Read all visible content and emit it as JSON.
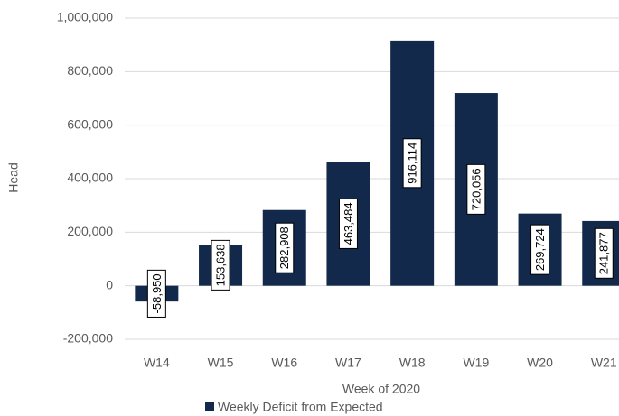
{
  "chart_data": {
    "type": "bar",
    "categories": [
      "W14",
      "W15",
      "W16",
      "W17",
      "W18",
      "W19",
      "W20",
      "W21"
    ],
    "series": [
      {
        "name": "Weekly Deficit from Expected",
        "color": "#13294b",
        "values": [
          -58950,
          153638,
          282908,
          463484,
          916114,
          720056,
          269724,
          241877
        ],
        "value_labels": [
          "-58,950",
          "153,638",
          "282,908",
          "463,484",
          "916,114",
          "720,056",
          "269,724",
          "241,877"
        ]
      }
    ],
    "x_label": "Week of 2020",
    "y_label": "Head",
    "ylim": [
      -200000,
      1000000
    ],
    "yticks": [
      {
        "value": -200000,
        "label": "-200,000"
      },
      0,
      {
        "value": 200000,
        "label": "200,000"
      },
      {
        "value": 400000,
        "label": "400,000"
      },
      {
        "value": 600000,
        "label": "600,000"
      },
      {
        "value": 800000,
        "label": "800,000"
      },
      {
        "value": 1000000,
        "label": "1,000,000"
      }
    ],
    "grid": true,
    "legend": "bottom"
  }
}
